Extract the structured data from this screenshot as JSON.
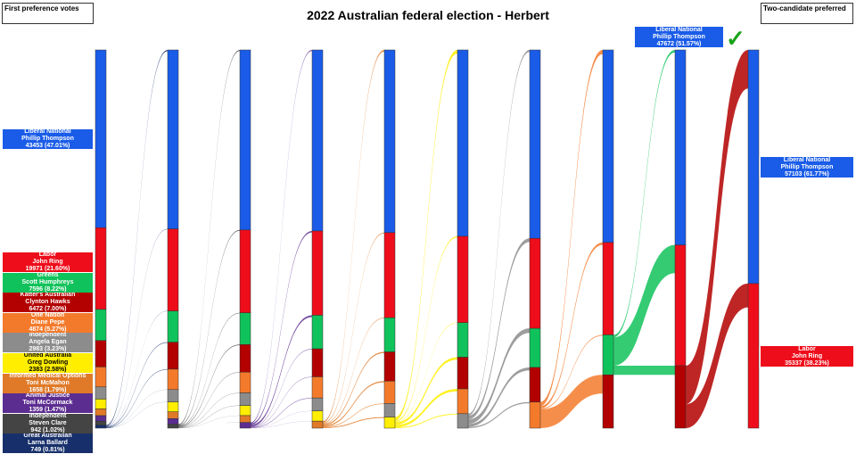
{
  "title": "2022 Australian federal election - Herbert",
  "left_box": "First preference votes",
  "right_box": "Two-candidate preferred",
  "winner_icon": "check-mark-icon",
  "chart_data": {
    "type": "sankey",
    "title": "2022 Australian federal election - Herbert",
    "candidates": [
      {
        "party": "Liberal National",
        "name": "Phillip Thompson",
        "color": "#1a5ce8",
        "first": "43453 (47.01%)"
      },
      {
        "party": "Labor",
        "name": "John Ring",
        "color": "#ee0d1a",
        "first": "19971 (21.60%)"
      },
      {
        "party": "Greens",
        "name": "Scott Humphreys",
        "color": "#10c25b",
        "first": "7596 (8.22%)"
      },
      {
        "party": "Katter's Australian",
        "name": "Clynton Hawks",
        "color": "#b30000",
        "first": "6472 (7.00%)"
      },
      {
        "party": "One Nation",
        "name": "Diane Pepe",
        "color": "#f47a2b",
        "first": "4874 (5.27%)"
      },
      {
        "party": "Independent",
        "name": "Angela Egan",
        "color": "#8c8c8c",
        "first": "2983 (3.23%)"
      },
      {
        "party": "United Australia",
        "name": "Greg Dowling",
        "color": "#ffee00",
        "first": "2383 (2.58%)",
        "dark_text": true
      },
      {
        "party": "Informed Medical Options",
        "name": "Toni McMahon",
        "color": "#e07a28",
        "first": "1658 (1.79%)"
      },
      {
        "party": "Animal Justice",
        "name": "Toni McCormack",
        "color": "#5c2d91",
        "first": "1359 (1.47%)"
      },
      {
        "party": "Independent",
        "name": "Steven Clare",
        "color": "#444444",
        "first": "942 (1.02%)"
      },
      {
        "party": "Great Australian",
        "name": "Larna Ballard",
        "color": "#17306b",
        "first": "749 (0.81%)"
      }
    ],
    "rounds": [
      [
        43453,
        19971,
        7596,
        6472,
        4874,
        2983,
        2383,
        1658,
        1359,
        942,
        749
      ],
      [
        43753,
        20051,
        7636,
        6592,
        4984,
        3013,
        2423,
        1668,
        1364,
        956,
        null
      ],
      [
        44003,
        20251,
        7756,
        6742,
        5084,
        3073,
        2463,
        1688,
        1380,
        null,
        null
      ],
      [
        44253,
        20601,
        8206,
        6842,
        5164,
        3173,
        2493,
        1708,
        null,
        null,
        null
      ],
      [
        44653,
        20801,
        8356,
        7142,
        5464,
        3323,
        2701,
        null,
        null,
        null,
        null
      ],
      [
        45553,
        21101,
        8456,
        7742,
        6064,
        3524,
        null,
        null,
        null,
        null,
        null
      ],
      [
        46053,
        22001,
        9556,
        8442,
        6388,
        null,
        null,
        null,
        null,
        null,
        null
      ],
      [
        47053,
        22601,
        9756,
        13030,
        null,
        null,
        null,
        null,
        null,
        null,
        null
      ],
      [
        47672,
        29501,
        null,
        15267,
        null,
        null,
        null,
        null,
        null,
        null,
        null
      ],
      [
        57103,
        35337,
        null,
        null,
        null,
        null,
        null,
        null,
        null,
        null,
        null
      ]
    ],
    "final_round_winner": {
      "party": "Liberal National",
      "name": "Phillip Thompson",
      "votes": "47672 (51.57%)"
    },
    "two_candidate_preferred": [
      {
        "party": "Liberal National",
        "name": "Phillip Thompson",
        "votes": "57103 (61.77%)",
        "color": "#1a5ce8"
      },
      {
        "party": "Labor",
        "name": "John Ring",
        "votes": "35337 (38.23%)",
        "color": "#ee0d1a"
      }
    ]
  }
}
